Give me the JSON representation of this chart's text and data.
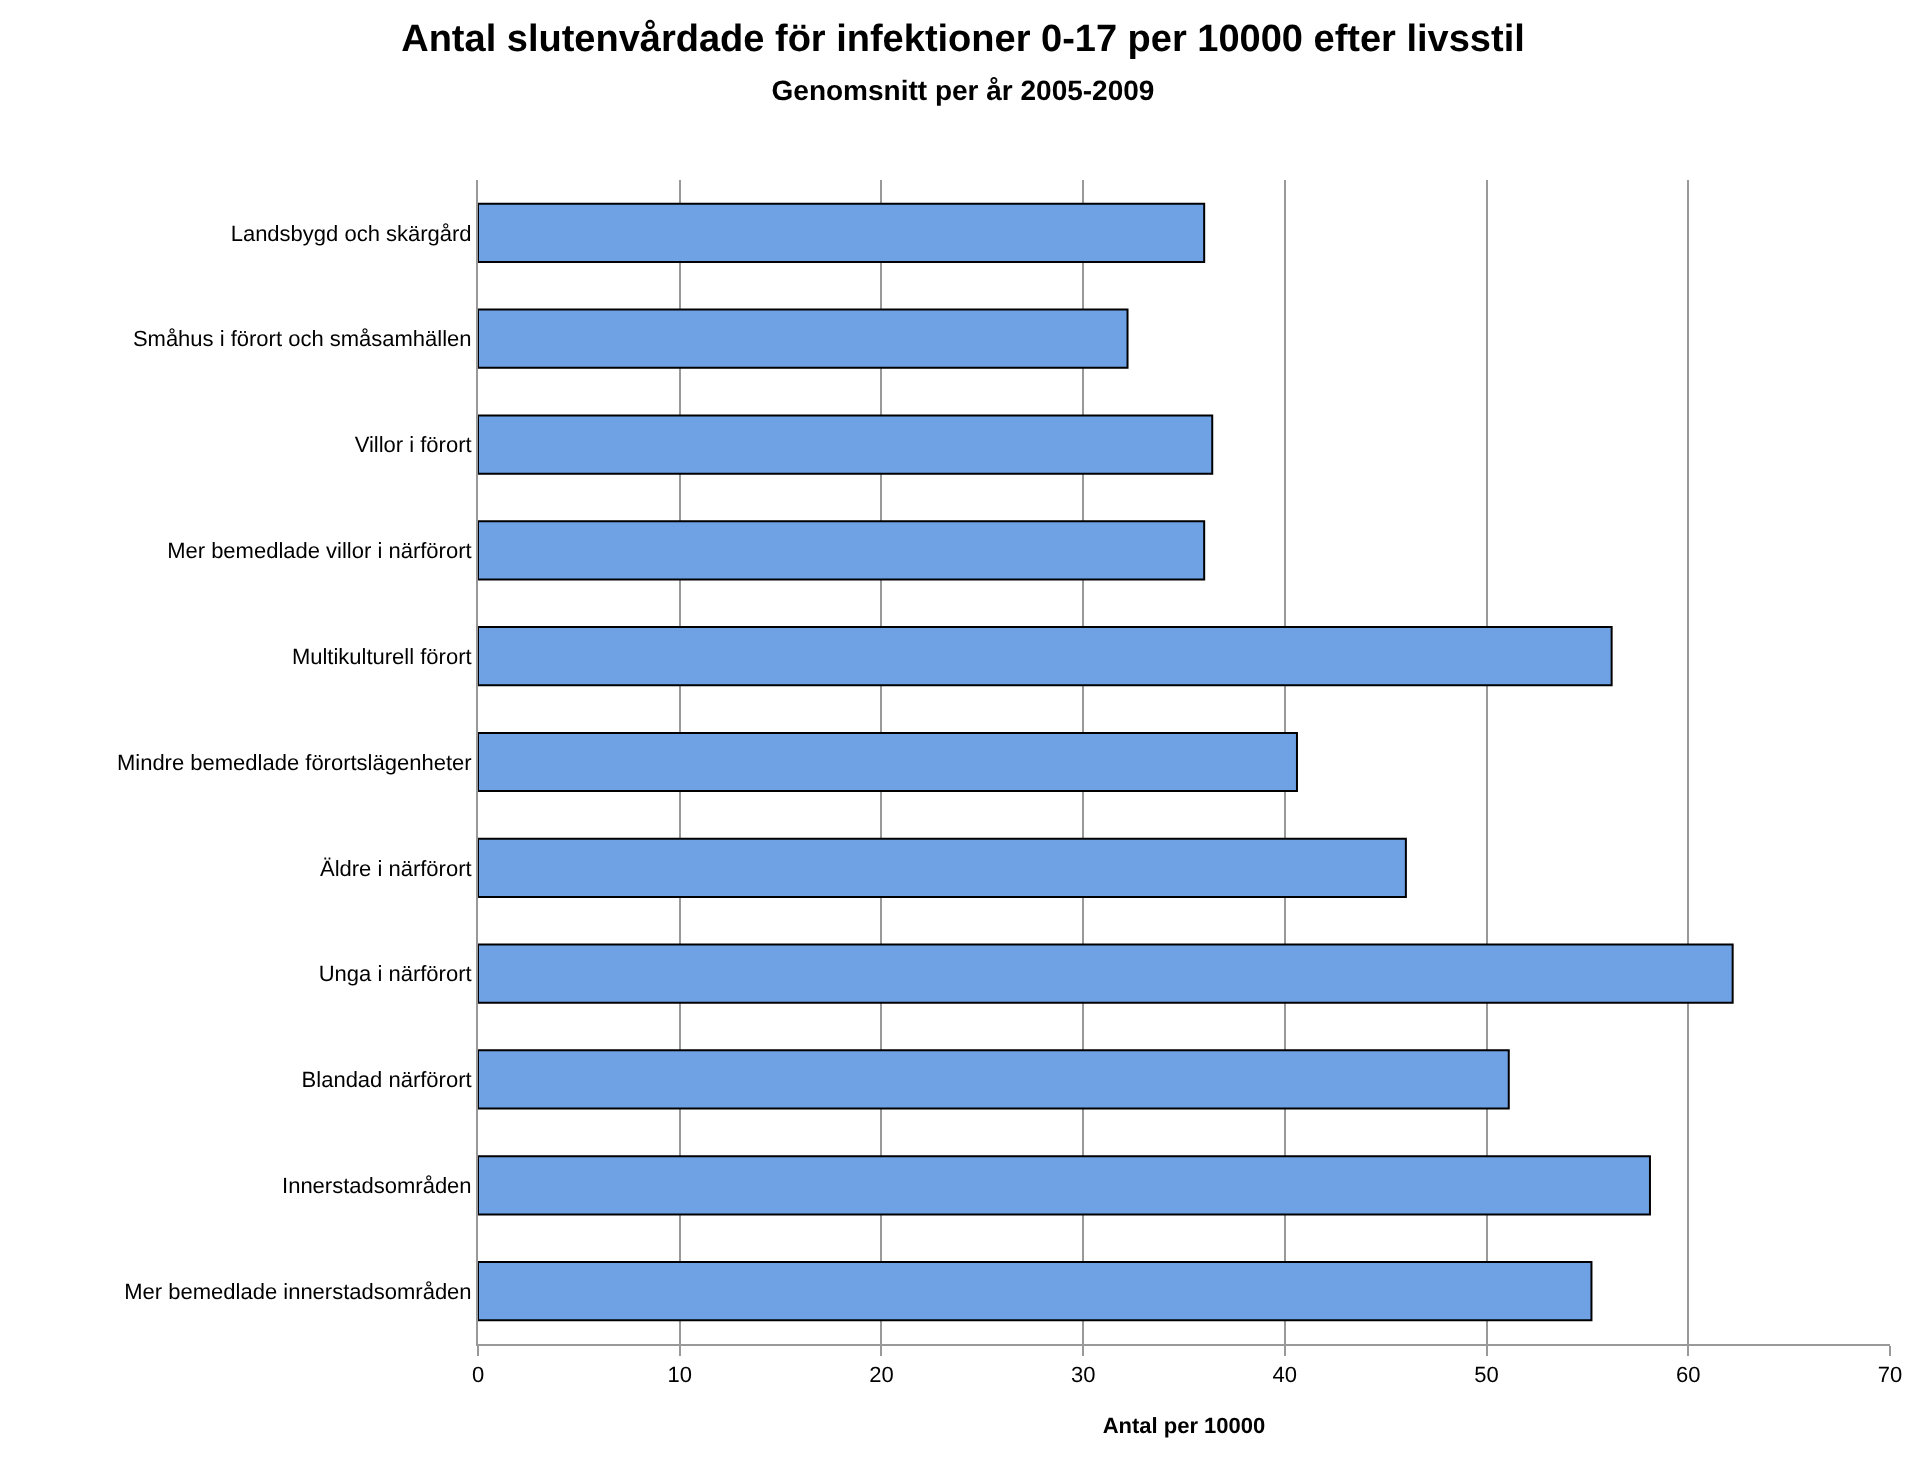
{
  "chart_data": {
    "type": "bar",
    "orientation": "horizontal",
    "title": "Antal slutenvårdade för infektioner 0-17 per 10000 efter livsstil",
    "subtitle": "Genomsnitt per år 2005-2009",
    "xlabel": "Antal per 10000",
    "categories": [
      "Landsbygd och skärgård",
      "Småhus i förort och småsamhällen",
      "Villor i förort",
      "Mer bemedlade villor i närförort",
      "Multikulturell förort",
      "Mindre bemedlade förortslägenheter",
      "Äldre i närförort",
      "Unga i närförort",
      "Blandad närförort",
      "Innerstadsområden",
      "Mer bemedlade innerstadsområden"
    ],
    "values": [
      36.0,
      32.2,
      36.4,
      36.0,
      56.2,
      40.6,
      46.0,
      62.2,
      51.1,
      58.1,
      55.2
    ],
    "color": "#6fa2e4",
    "xlim": [
      0,
      70
    ],
    "xticks": [
      0,
      10,
      20,
      30,
      40,
      50,
      60,
      70
    ],
    "grid": "x"
  }
}
